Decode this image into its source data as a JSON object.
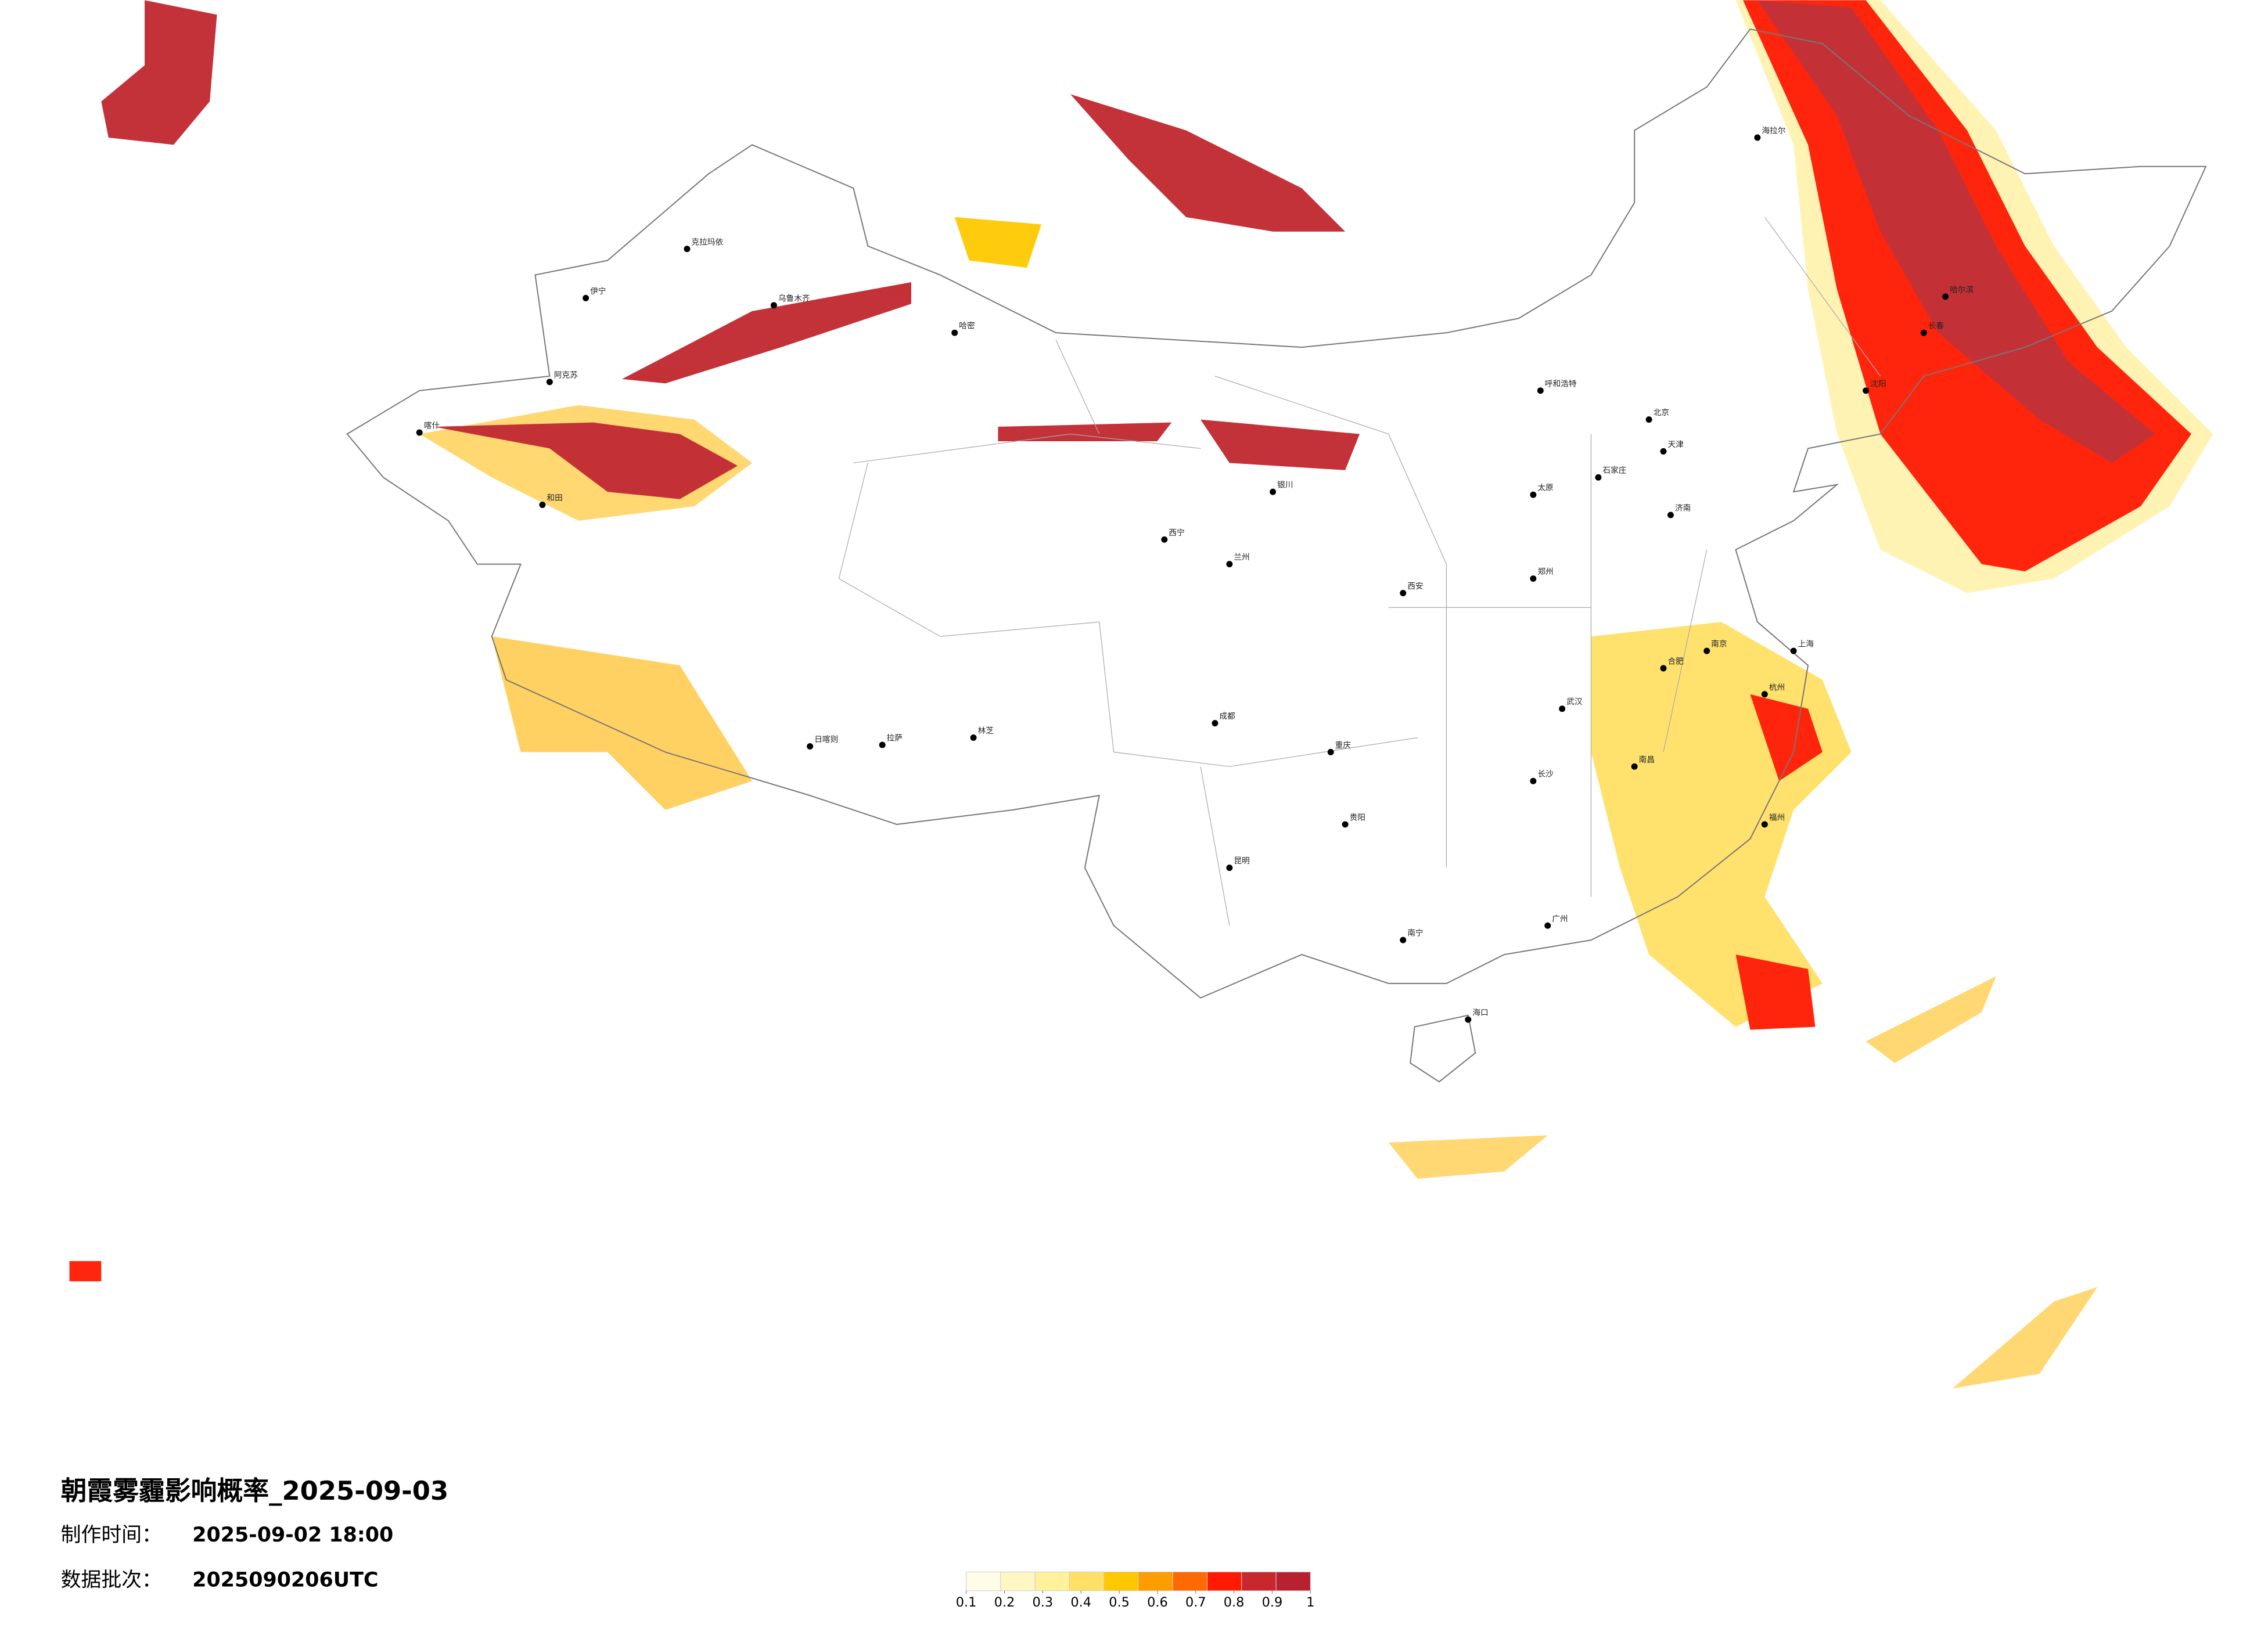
{
  "title": "朝霞雾霾影响概率_2025-09-03",
  "made_time": {
    "label": "制作时间：",
    "value": "2025-09-02 18:00"
  },
  "batch": {
    "label": "数据批次：",
    "value": "2025090206UTC"
  },
  "legend": {
    "colors": [
      "#fffce8",
      "#fff7c2",
      "#fff29a",
      "#ffe066",
      "#ffc800",
      "#ff9c00",
      "#ff6a00",
      "#ff1a00",
      "#c8282d",
      "#b82230"
    ],
    "ticks": [
      0.1,
      0.2,
      0.3,
      0.4,
      0.5,
      0.6,
      0.7,
      0.8,
      0.9,
      1
    ]
  },
  "cities": [
    "海拉尔",
    "克拉玛依",
    "乌鲁木齐",
    "伊宁",
    "阿克苏",
    "和田",
    "喀什",
    "哈密",
    "拉萨",
    "日喀则",
    "林芝",
    "西宁",
    "兰州",
    "银川",
    "呼和浩特",
    "北京",
    "天津",
    "石家庄",
    "太原",
    "济南",
    "郑州",
    "西安",
    "成都",
    "重庆",
    "贵阳",
    "昆明",
    "南宁",
    "广州",
    "福州",
    "杭州",
    "上海",
    "南京",
    "合肥",
    "武汉",
    "长沙",
    "南昌",
    "哈尔滨",
    "长春",
    "沈阳",
    "海口"
  ]
}
